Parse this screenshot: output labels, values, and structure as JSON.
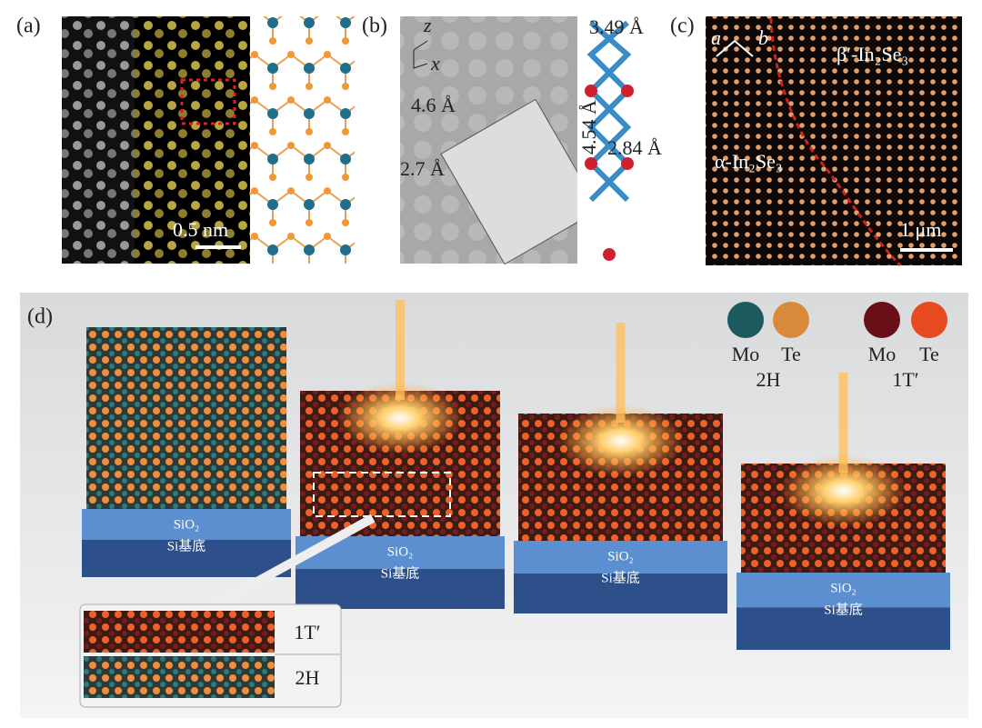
{
  "panel_a": {
    "label": "(a)",
    "scale_bar": "0.5 nm"
  },
  "panel_b": {
    "label": "(b)",
    "axes": [
      "z",
      "x"
    ],
    "spacings": [
      "4.6 Å",
      "2.7 Å"
    ],
    "model_spacings": [
      "3.49 Å",
      "4.54 Å",
      "2.84 Å"
    ]
  },
  "panel_c": {
    "label": "(c)",
    "axes": [
      "a",
      "b"
    ],
    "phases": [
      "β′-In₂Se₃",
      "α-In₂Se₃"
    ],
    "scale_bar": "1 μm"
  },
  "panel_d": {
    "label": "(d)",
    "legend": [
      {
        "phase": "2H",
        "elements": [
          "Mo",
          "Te"
        ]
      },
      {
        "phase": "1T′",
        "elements": [
          "Mo",
          "Te"
        ]
      }
    ],
    "substrates": [
      {
        "layers": [
          "SiO₂",
          "Si基底"
        ]
      },
      {
        "layers": [
          "SiO₂",
          "Si基底"
        ]
      },
      {
        "layers": [
          "SiO₂",
          "Si基底"
        ]
      },
      {
        "layers": [
          "SiO₂",
          "Si基底"
        ]
      }
    ],
    "inset": {
      "layers": [
        "1T′",
        "2H"
      ]
    }
  }
}
